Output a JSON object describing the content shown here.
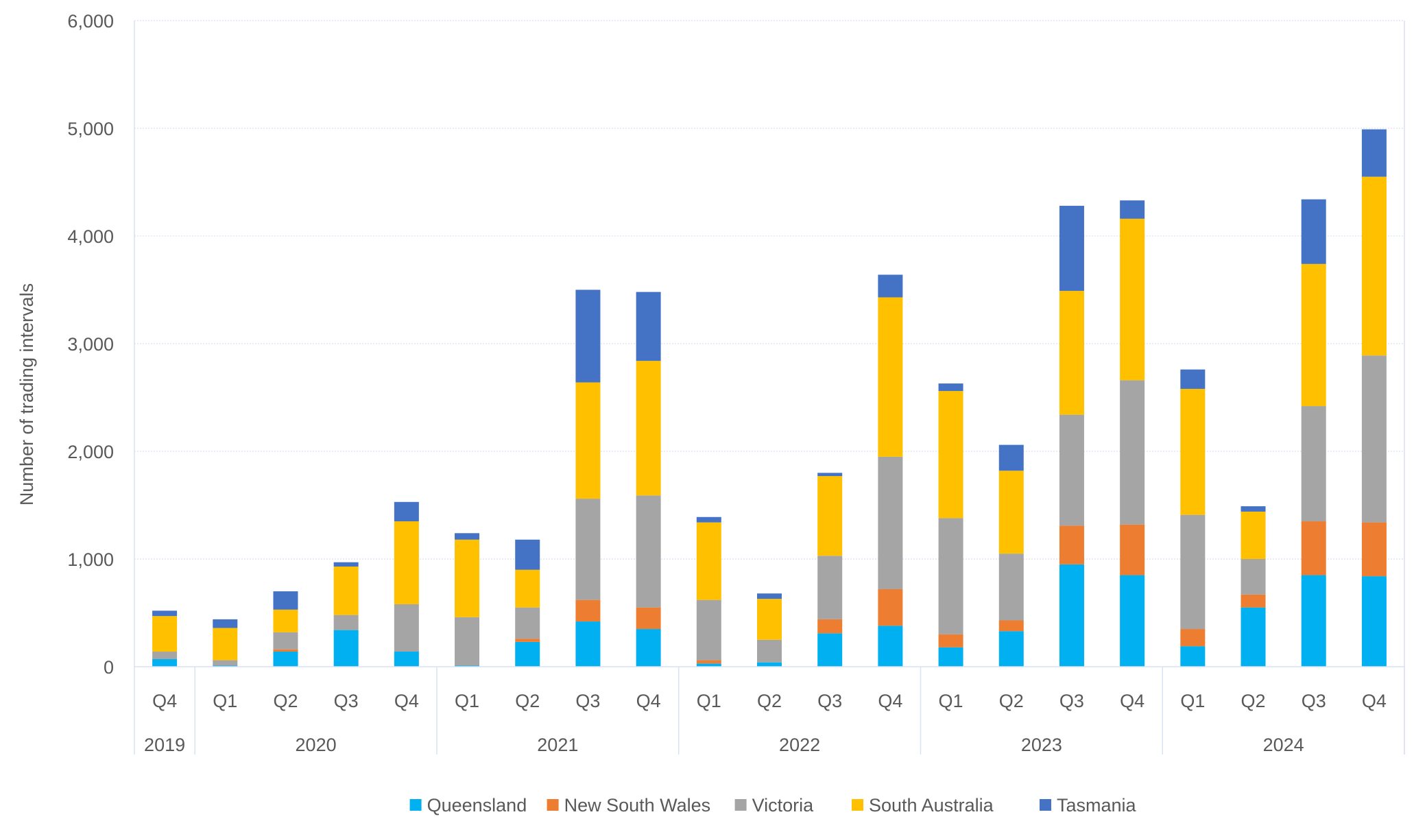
{
  "chart_data": {
    "type": "bar",
    "stacked": true,
    "title": "",
    "xlabel": "",
    "ylabel": "Number of trading intervals",
    "ylim": [
      0,
      6000
    ],
    "yticks": [
      0,
      1000,
      2000,
      3000,
      4000,
      5000,
      6000
    ],
    "ytick_labels": [
      "0",
      "1,000",
      "2,000",
      "3,000",
      "4,000",
      "5,000",
      "6,000"
    ],
    "grid": true,
    "legend_position": "bottom",
    "categories": [
      "Q4",
      "Q1",
      "Q2",
      "Q3",
      "Q4",
      "Q1",
      "Q2",
      "Q3",
      "Q4",
      "Q1",
      "Q2",
      "Q3",
      "Q4",
      "Q1",
      "Q2",
      "Q3",
      "Q4",
      "Q1",
      "Q2",
      "Q3",
      "Q4"
    ],
    "year_groups": [
      {
        "label": "2019",
        "count": 1
      },
      {
        "label": "2020",
        "count": 4
      },
      {
        "label": "2021",
        "count": 4
      },
      {
        "label": "2022",
        "count": 4
      },
      {
        "label": "2023",
        "count": 4
      },
      {
        "label": "2024",
        "count": 4
      }
    ],
    "series": [
      {
        "name": "Queensland",
        "color": "#00B0F0",
        "values": [
          70,
          10,
          140,
          340,
          140,
          10,
          230,
          420,
          350,
          30,
          40,
          310,
          380,
          180,
          330,
          950,
          850,
          190,
          550,
          850,
          840
        ]
      },
      {
        "name": "New South Wales",
        "color": "#ED7D31",
        "values": [
          0,
          0,
          20,
          0,
          0,
          0,
          30,
          200,
          200,
          30,
          0,
          130,
          340,
          120,
          100,
          360,
          470,
          160,
          120,
          500,
          500
        ]
      },
      {
        "name": "Victoria",
        "color": "#A5A5A5",
        "values": [
          70,
          50,
          160,
          140,
          440,
          450,
          290,
          940,
          1040,
          560,
          210,
          590,
          1230,
          1080,
          620,
          1030,
          1340,
          1060,
          330,
          1070,
          1550
        ]
      },
      {
        "name": "South Australia",
        "color": "#FFC000",
        "values": [
          330,
          300,
          210,
          450,
          770,
          720,
          350,
          1080,
          1250,
          720,
          380,
          740,
          1480,
          1180,
          770,
          1150,
          1500,
          1170,
          440,
          1320,
          1660
        ]
      },
      {
        "name": "Tasmania",
        "color": "#4472C4",
        "values": [
          50,
          80,
          170,
          40,
          180,
          60,
          280,
          860,
          640,
          50,
          50,
          30,
          210,
          70,
          240,
          790,
          170,
          180,
          50,
          600,
          440
        ]
      }
    ]
  }
}
